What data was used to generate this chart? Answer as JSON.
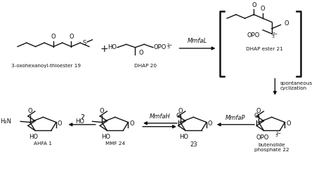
{
  "background_color": "#ffffff",
  "compounds": {
    "19": {
      "label": "3-oxohexanoyl-thioester 19"
    },
    "20": {
      "label": "DHAP 20"
    },
    "21": {
      "label": "DHAP ester 21"
    },
    "22": {
      "label": "butenolide\nphosphate 22"
    },
    "23": {
      "label": "23"
    },
    "24": {
      "label": "MMF 24"
    },
    "1": {
      "label": "AHFA 1"
    }
  },
  "enzyme_labels": {
    "MmfaL": "MmfaL",
    "MmfaP": "MmfaP",
    "MmfaH": "MmfaH",
    "spont": "spontaneous\ncyclization",
    "question": "?"
  }
}
